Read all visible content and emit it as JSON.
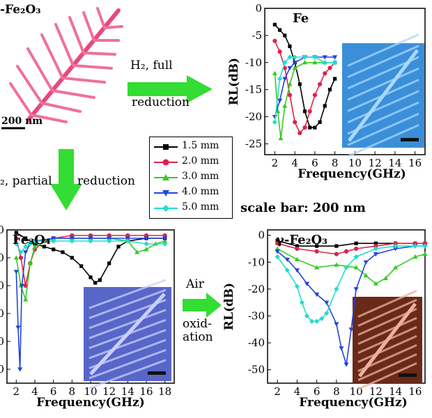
{
  "top_left": {
    "title": "-Fe₂O₃",
    "scale_label": "200 nm"
  },
  "arrow_right": {
    "line1": "H₂, full",
    "line2": "reduction"
  },
  "arrow_down": {
    "text_left": "₂, partial",
    "text_right": "reduction"
  },
  "arrow_bottom": {
    "line1": "Air",
    "line2": "oxid-",
    "line3": "ation"
  },
  "scale_note": "scale bar: 200 nm",
  "legend": {
    "entries": [
      "1.5 mm",
      "2.0 mm",
      "3.0 mm",
      "4.0 mm",
      "5.0 mm"
    ]
  },
  "colors": {
    "green_arrow": "#33dd33",
    "s1": "#000000",
    "s2": "#e0204a",
    "s3": "#33cc22",
    "s4": "#2244dd",
    "s5": "#22ddcc"
  },
  "chart_data": [
    {
      "type": "line",
      "title": "Fe",
      "xlabel": "Frequency(GHz)",
      "ylabel": "RL(dB)",
      "xlim": [
        1,
        17
      ],
      "ylim": [
        -27,
        0
      ],
      "xticks": [
        "2",
        "4",
        "6",
        "8",
        "10",
        "12",
        "14",
        "16"
      ],
      "yticks": [
        "0",
        "-5",
        "-10",
        "-15",
        "-20",
        "-25"
      ],
      "series": [
        {
          "name": "1.5 mm",
          "x": [
            2,
            2.5,
            3,
            3.5,
            4,
            4.5,
            5,
            5.5,
            6,
            6.5,
            7,
            7.5,
            8
          ],
          "y": [
            -3,
            -4,
            -5,
            -7,
            -10,
            -14,
            -19,
            -22,
            -22,
            -21,
            -18,
            -15,
            -13
          ]
        },
        {
          "name": "2.0 mm",
          "x": [
            2,
            2.5,
            3,
            3.5,
            4,
            4.5,
            5,
            5.5,
            6,
            6.5,
            7,
            7.5,
            8
          ],
          "y": [
            -6,
            -8,
            -11,
            -16,
            -21,
            -23,
            -22,
            -19,
            -16,
            -14,
            -12,
            -11,
            -10
          ]
        },
        {
          "name": "3.0 mm",
          "x": [
            2,
            2.3,
            2.6,
            3,
            3.5,
            4,
            5,
            6,
            7,
            8
          ],
          "y": [
            -12,
            -19,
            -24,
            -18,
            -14,
            -11,
            -10,
            -10,
            -10,
            -10
          ]
        },
        {
          "name": "4.0 mm",
          "x": [
            2,
            2.5,
            3,
            3.5,
            4,
            5,
            6,
            7,
            8
          ],
          "y": [
            -20,
            -17,
            -13,
            -11,
            -10,
            -9,
            -9,
            -9,
            -9
          ]
        },
        {
          "name": "5.0 mm",
          "x": [
            2,
            2.5,
            3,
            3.5,
            4,
            5,
            6,
            7,
            8
          ],
          "y": [
            -21,
            -13,
            -10,
            -9,
            -9,
            -9,
            -9,
            -10,
            -10
          ]
        }
      ]
    },
    {
      "type": "line",
      "title": "Fe₃O₄",
      "xlabel": "Frequency(GHz)",
      "ylabel": "",
      "xlim": [
        1,
        19
      ],
      "ylim": [
        -55,
        0
      ],
      "xticks": [
        "2",
        "4",
        "6",
        "8",
        "10",
        "12",
        "14",
        "16",
        "18"
      ],
      "yticks": [
        "0",
        "0",
        "0",
        "0",
        "0",
        "0"
      ],
      "series": [
        {
          "name": "1.5 mm",
          "x": [
            2,
            3,
            4,
            5,
            6,
            7,
            8,
            9,
            10,
            10.5,
            11,
            12,
            13,
            14,
            16,
            18
          ],
          "y": [
            -1,
            -3,
            -5,
            -6,
            -7,
            -8,
            -10,
            -13,
            -17,
            -19,
            -18,
            -12,
            -6,
            -4,
            -3,
            -3
          ]
        },
        {
          "name": "2.0 mm",
          "x": [
            2,
            2.5,
            3,
            3.5,
            4,
            5,
            6,
            8,
            10,
            12,
            14,
            16,
            18
          ],
          "y": [
            -3,
            -10,
            -20,
            -12,
            -7,
            -4,
            -3,
            -2,
            -2,
            -2,
            -2,
            -2,
            -2
          ]
        },
        {
          "name": "3.0 mm",
          "x": [
            2,
            2.5,
            3,
            3.5,
            4,
            6,
            8,
            10,
            12,
            14,
            15,
            16,
            17,
            18
          ],
          "y": [
            -10,
            -20,
            -25,
            -12,
            -6,
            -3,
            -3,
            -3,
            -3,
            -4,
            -8,
            -7,
            -5,
            -4
          ]
        },
        {
          "name": "4.0 mm",
          "x": [
            2,
            2.2,
            2.4,
            2.6,
            3,
            3.5,
            4,
            6,
            8,
            10,
            12,
            14,
            16,
            18
          ],
          "y": [
            -15,
            -35,
            -50,
            -20,
            -8,
            -5,
            -4,
            -3,
            -3,
            -3,
            -3,
            -3,
            -3,
            -3
          ]
        },
        {
          "name": "5.0 mm",
          "x": [
            2,
            2.5,
            3,
            3.5,
            4,
            6,
            8,
            10,
            12,
            14,
            16,
            18
          ],
          "y": [
            -5,
            -8,
            -6,
            -5,
            -4,
            -4,
            -4,
            -4,
            -4,
            -4,
            -5,
            -5
          ]
        }
      ]
    },
    {
      "type": "line",
      "title": "γ-Fe₂O₃",
      "xlabel": "Frequency(GHz)",
      "ylabel": "RL(dB)",
      "xlim": [
        1,
        17
      ],
      "ylim": [
        -55,
        2
      ],
      "xticks": [
        "2",
        "4",
        "6",
        "8",
        "10",
        "12",
        "14",
        "16"
      ],
      "yticks": [
        "0",
        "-10",
        "-20",
        "-30",
        "-40",
        "-50"
      ],
      "series": [
        {
          "name": "1.5 mm",
          "x": [
            2,
            4,
            6,
            8,
            10,
            12,
            14,
            16,
            17
          ],
          "y": [
            -2,
            -4,
            -4,
            -4,
            -3,
            -3,
            -3,
            -3,
            -3
          ]
        },
        {
          "name": "2.0 mm",
          "x": [
            2,
            4,
            6,
            8,
            9,
            10,
            12,
            14,
            16,
            17
          ],
          "y": [
            -3,
            -5,
            -6,
            -7,
            -6,
            -5,
            -4,
            -3,
            -3,
            -3
          ]
        },
        {
          "name": "3.0 mm",
          "x": [
            2,
            4,
            6,
            8,
            10,
            11,
            12,
            13,
            14,
            16,
            17
          ],
          "y": [
            -5,
            -9,
            -12,
            -11,
            -12,
            -15,
            -18,
            -16,
            -12,
            -8,
            -7
          ]
        },
        {
          "name": "4.0 mm",
          "x": [
            2,
            3,
            4,
            5,
            6,
            7,
            8,
            8.5,
            9,
            9.5,
            10,
            11,
            12,
            14,
            16,
            17
          ],
          "y": [
            -6,
            -9,
            -13,
            -18,
            -22,
            -25,
            -33,
            -42,
            -48,
            -35,
            -20,
            -10,
            -7,
            -5,
            -4,
            -4
          ]
        },
        {
          "name": "5.0 mm",
          "x": [
            2,
            3,
            4,
            4.5,
            5,
            5.5,
            6,
            6.5,
            7,
            8,
            9,
            10,
            12,
            14,
            16,
            17
          ],
          "y": [
            -8,
            -13,
            -19,
            -25,
            -30,
            -32,
            -32,
            -31,
            -29,
            -20,
            -12,
            -8,
            -5,
            -4,
            -4,
            -4
          ]
        }
      ]
    }
  ]
}
